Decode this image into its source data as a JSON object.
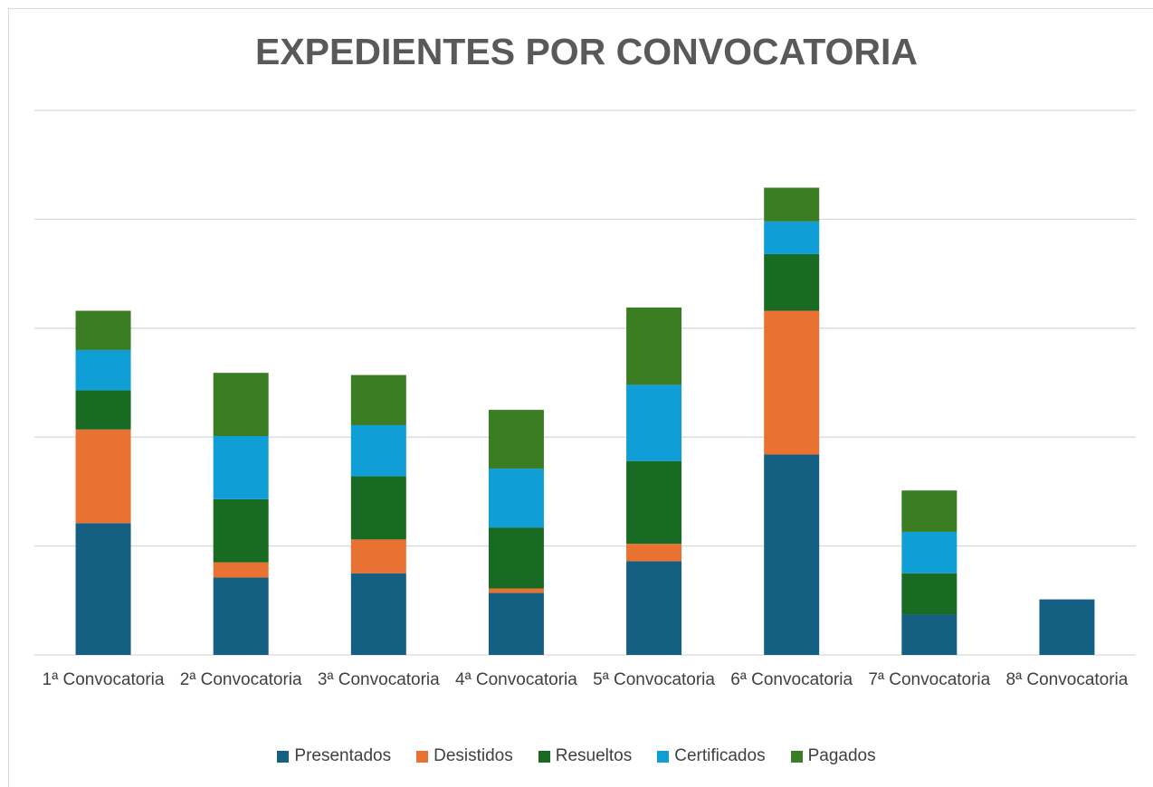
{
  "chart_data": {
    "type": "stacked_bar",
    "title": "EXPEDIENTES POR CONVOCATORIA",
    "categories": [
      "1ª Convocatoria",
      "2ª Convocatoria",
      "3ª Convocatoria",
      "4ª Convocatoria",
      "5ª Convocatoria",
      "6ª Convocatoria",
      "7ª Convocatoria",
      "8ª Convocatoria"
    ],
    "series": [
      {
        "name": "Presentados",
        "color": "#156082",
        "values": [
          1.21,
          0.71,
          0.75,
          0.57,
          0.86,
          1.84,
          0.37,
          0.51
        ]
      },
      {
        "name": "Desistidos",
        "color": "#E97132",
        "values": [
          0.86,
          0.14,
          0.31,
          0.04,
          0.16,
          1.32,
          0,
          0
        ]
      },
      {
        "name": "Resueltos",
        "color": "#196B24",
        "values": [
          0.36,
          0.58,
          0.58,
          0.56,
          0.76,
          0.52,
          0.38,
          0
        ]
      },
      {
        "name": "Certificados",
        "color": "#0F9ED5",
        "values": [
          0.37,
          0.58,
          0.47,
          0.54,
          0.7,
          0.3,
          0.38,
          0
        ]
      },
      {
        "name": "Pagados",
        "color": "#3B7D23",
        "values": [
          0.36,
          0.58,
          0.46,
          0.54,
          0.71,
          0.31,
          0.38,
          0
        ]
      }
    ],
    "ylim": [
      0,
      5
    ],
    "yticks": [
      0,
      1,
      2,
      3,
      4,
      5
    ],
    "grid": true,
    "legend": "bottom"
  }
}
